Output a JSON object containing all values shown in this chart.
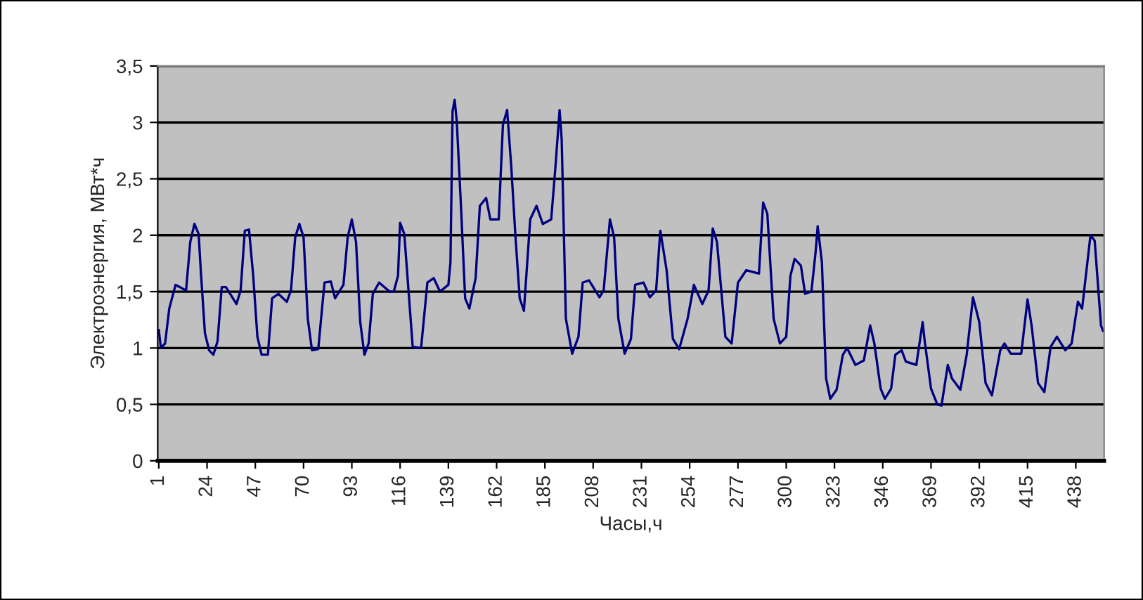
{
  "chart_data": {
    "type": "line",
    "xlabel": "Часы,ч",
    "ylabel": "Электроэнергия, МВт*ч",
    "x": [
      1,
      2,
      4,
      6,
      9,
      14,
      16,
      18,
      20,
      21,
      23,
      25,
      27,
      29,
      31,
      33,
      38,
      40,
      42,
      44,
      46,
      48,
      50,
      53,
      55,
      58,
      62,
      64,
      66,
      68,
      70,
      72,
      74,
      77,
      79,
      80,
      83,
      85,
      89,
      91,
      93,
      95,
      97,
      99,
      101,
      103,
      106,
      111,
      113,
      115,
      116,
      118,
      120,
      122,
      126,
      129,
      132,
      135,
      139,
      140,
      141,
      142,
      143,
      145,
      147,
      149,
      152,
      154,
      157,
      159,
      163,
      165,
      167,
      169,
      171,
      173,
      175,
      178,
      181,
      184,
      188,
      190,
      192,
      193,
      195,
      198,
      201,
      203,
      206,
      211,
      213,
      216,
      218,
      220,
      223,
      226,
      228,
      232,
      235,
      238,
      240,
      243,
      246,
      249,
      253,
      256,
      260,
      263,
      265,
      267,
      271,
      274,
      277,
      281,
      287,
      289,
      291,
      294,
      297,
      300,
      302,
      304,
      307,
      309,
      312,
      314,
      315,
      317,
      319,
      321,
      324,
      327,
      329,
      333,
      337,
      340,
      342,
      345,
      347,
      350,
      352,
      355,
      357,
      362,
      365,
      366,
      369,
      372,
      374,
      377,
      379,
      383,
      386,
      389,
      392,
      395,
      398,
      402,
      404,
      407,
      412,
      415,
      417,
      420,
      423,
      426,
      429,
      433,
      436,
      439,
      441,
      445,
      447,
      450,
      451
    ],
    "series": [
      {
        "color": "#000080",
        "values": [
          1.16,
          1.0,
          1.04,
          1.35,
          1.56,
          1.51,
          1.94,
          2.1,
          2.01,
          1.69,
          1.13,
          0.98,
          0.94,
          1.06,
          1.54,
          1.54,
          1.39,
          1.51,
          2.04,
          2.05,
          1.64,
          1.1,
          0.94,
          0.94,
          1.44,
          1.48,
          1.41,
          1.51,
          1.98,
          2.1,
          1.98,
          1.26,
          0.98,
          0.99,
          1.39,
          1.58,
          1.59,
          1.44,
          1.56,
          1.98,
          2.14,
          1.94,
          1.23,
          0.94,
          1.04,
          1.48,
          1.58,
          1.5,
          1.5,
          1.64,
          2.11,
          2.01,
          1.51,
          1.01,
          1.0,
          1.58,
          1.62,
          1.5,
          1.56,
          1.76,
          3.1,
          3.2,
          3.01,
          2.26,
          1.44,
          1.35,
          1.62,
          2.26,
          2.33,
          2.14,
          2.14,
          2.98,
          3.11,
          2.6,
          1.98,
          1.44,
          1.33,
          2.14,
          2.26,
          2.1,
          2.14,
          2.6,
          3.11,
          2.85,
          1.26,
          0.95,
          1.1,
          1.58,
          1.6,
          1.45,
          1.51,
          2.14,
          1.98,
          1.26,
          0.95,
          1.08,
          1.56,
          1.58,
          1.45,
          1.51,
          2.04,
          1.69,
          1.08,
          0.99,
          1.26,
          1.56,
          1.39,
          1.51,
          2.06,
          1.94,
          1.1,
          1.04,
          1.58,
          1.69,
          1.66,
          2.29,
          2.19,
          1.26,
          1.04,
          1.1,
          1.64,
          1.79,
          1.73,
          1.48,
          1.5,
          1.85,
          2.08,
          1.76,
          0.73,
          0.55,
          0.63,
          0.94,
          1.0,
          0.85,
          0.89,
          1.2,
          1.04,
          0.64,
          0.55,
          0.64,
          0.94,
          0.98,
          0.88,
          0.85,
          1.23,
          1.06,
          0.64,
          0.5,
          0.49,
          0.85,
          0.73,
          0.63,
          0.94,
          1.45,
          1.23,
          0.69,
          0.58,
          0.98,
          1.04,
          0.95,
          0.95,
          1.43,
          1.19,
          0.69,
          0.61,
          1.01,
          1.1,
          0.98,
          1.04,
          1.41,
          1.35,
          2.0,
          1.95,
          1.2,
          1.15
        ]
      }
    ],
    "xlim": [
      0.5,
      451.5
    ],
    "xticks": [
      1,
      24,
      47,
      70,
      93,
      116,
      139,
      162,
      185,
      208,
      231,
      254,
      277,
      300,
      323,
      346,
      369,
      392,
      415,
      438
    ],
    "ylim": [
      0,
      3.5
    ],
    "yticks": [
      0,
      {
        "value": 0.5,
        "label": "0,5"
      },
      1,
      {
        "value": 1.5,
        "label": "1,5"
      },
      2,
      {
        "value": 2.5,
        "label": "2,5"
      },
      3,
      {
        "value": 3.5,
        "label": "3,5"
      }
    ],
    "grid": "y",
    "marker": "none",
    "line_style": "solid"
  }
}
